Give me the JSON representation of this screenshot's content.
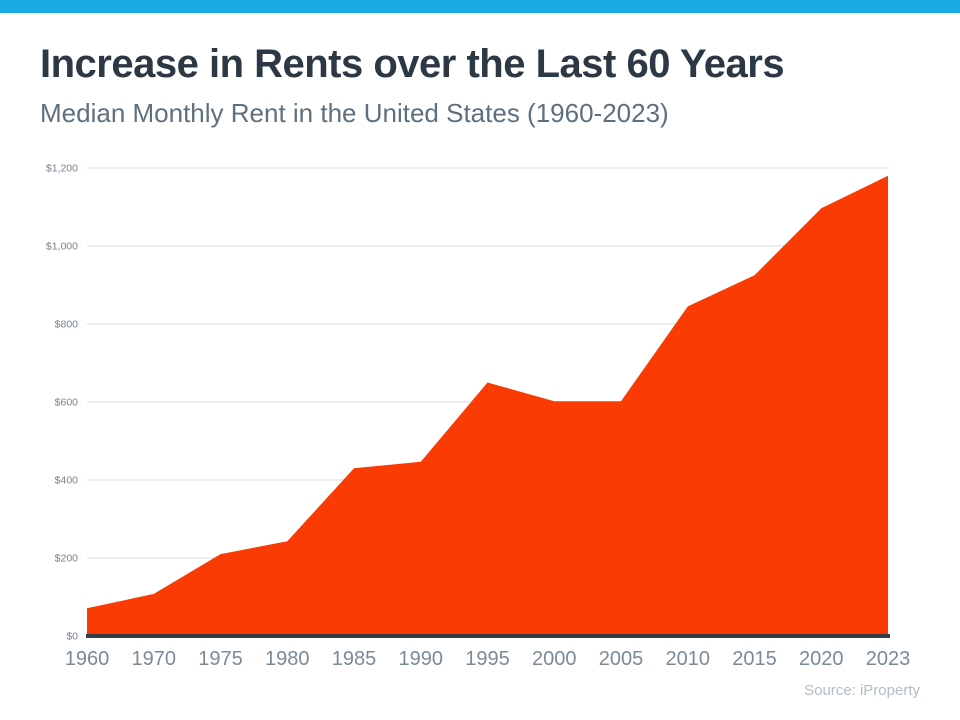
{
  "header": {
    "title": "Increase in Rents over the Last 60 Years",
    "subtitle": "Median Monthly Rent in the United States (1960-2023)"
  },
  "source_label": "Source: iProperty",
  "colors": {
    "accent_bar": "#18aae3",
    "area_fill": "#fb3b04",
    "zero_baseline": "#343c46",
    "gridline": "#d9dde0",
    "y_tick_label": "#76828e",
    "x_tick_label": "#7b8a99",
    "title_text": "#2c3844",
    "subtitle_text": "#5e707e",
    "source_text": "#b2bdc5"
  },
  "chart_data": {
    "type": "area",
    "title": "Increase in Rents over the Last 60 Years",
    "subtitle": "Median Monthly Rent in the United States (1960-2023)",
    "categories": [
      "1960",
      "1970",
      "1975",
      "1980",
      "1985",
      "1990",
      "1995",
      "2000",
      "2005",
      "2010",
      "2015",
      "2020",
      "2023"
    ],
    "values": [
      71,
      108,
      210,
      243,
      430,
      447,
      650,
      602,
      602,
      845,
      925,
      1097,
      1180
    ],
    "xlabel": "",
    "ylabel": "",
    "ylim": [
      0,
      1200
    ],
    "grid": true,
    "legend": "none",
    "y_ticks": [
      {
        "value": 0,
        "label": "$0"
      },
      {
        "value": 200,
        "label": "$200"
      },
      {
        "value": 400,
        "label": "$400"
      },
      {
        "value": 600,
        "label": "$600"
      },
      {
        "value": 800,
        "label": "$800"
      },
      {
        "value": 1000,
        "label": "$1,000"
      },
      {
        "value": 1200,
        "label": "$1,200"
      }
    ]
  }
}
